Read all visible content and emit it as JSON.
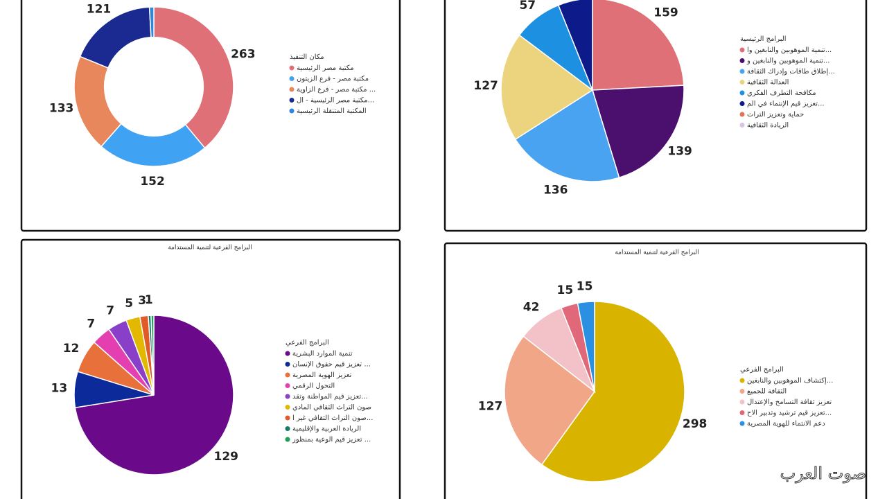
{
  "chart_data": [
    {
      "type": "donut",
      "legend_title": "مكان التنفيذ",
      "categories": [
        "مكتبة مصر الرئيسية",
        "مكتبة مصر - فرع الزيتون",
        "مكتبة مصر - فرع الزاوية ...",
        "مكتبة مصر الرئيسية - ال...",
        "المكتبة المتنقلة الرئيسية"
      ],
      "values": [
        263,
        152,
        133,
        121,
        6
      ],
      "colors": [
        "#e07078",
        "#3fa2f2",
        "#e8875c",
        "#1a2a90",
        "#2f86de"
      ]
    },
    {
      "type": "pie",
      "legend_title": "البرامج الرئيسية",
      "categories": [
        "تنمية الموهوبين والنابغين وا...",
        "تنمية الموهوبين والنابغين و...",
        "إطلاق طاقات وإدراك الثقافة...",
        "العدالة الثقافية",
        "مكافحة التطرف الفكري",
        "تعزيز قيم الإنتماء في الم...",
        "حماية وتعزيز التراث",
        "الريادة الثقافية"
      ],
      "values": [
        159,
        139,
        136,
        127,
        57,
        40,
        0,
        0
      ],
      "value_labels": [
        "159",
        "139",
        "136",
        "127",
        "57",
        null,
        null,
        null
      ],
      "colors": [
        "#e07078",
        "#4b0f6e",
        "#4aa3f0",
        "#ecd47e",
        "#1e90e2",
        "#0d1a8a",
        "#e0755a",
        "#d9c3e3"
      ]
    },
    {
      "type": "pie",
      "title": "البرامج الفرعية لتنمية المستدامة",
      "legend_title": "البرامج الفرعي",
      "categories": [
        "تنمية الموارد البشرية",
        "تعزيز قيم حقوق الإنسان ...",
        "تعزيز الهوية المصرية",
        "التحول الرقمي",
        "تعزيز قيم المواطنة وتقد...",
        "صون التراث الثقافي المادي",
        "صون التراث الثقافي غير ا...",
        "الريادة العربية والإقليمية",
        "تعزيز قيم الوعية بمنظور ..."
      ],
      "values": [
        129,
        13,
        12,
        7,
        7,
        5,
        3,
        1,
        1
      ],
      "value_labels": [
        "129",
        "13",
        "12",
        "7",
        "7",
        "5",
        "3",
        "1",
        null
      ],
      "colors": [
        "#6a0a8a",
        "#0d2a9a",
        "#e8703a",
        "#e43fb0",
        "#8a3fc8",
        "#e2b800",
        "#e05a2a",
        "#137a6a",
        "#1fa05a"
      ]
    },
    {
      "type": "pie",
      "title": "البرامج الفرعية لتنمية المستدامة",
      "legend_title": "البرامج الفرعي",
      "categories": [
        "إكتشاف الموهوبين والنابغين...",
        "الثقافة للجميع",
        "تعزيز ثقافة التسامح والإعتدال",
        "تعزيز قيم ترشيد وتدبير الاح...",
        "دعم الانتماء للهوية المصرية"
      ],
      "values": [
        298,
        127,
        42,
        15,
        15
      ],
      "colors": [
        "#d8b400",
        "#f2a688",
        "#f2c2c8",
        "#e06878",
        "#2a90e2"
      ]
    }
  ],
  "watermark": "صوت العرب"
}
